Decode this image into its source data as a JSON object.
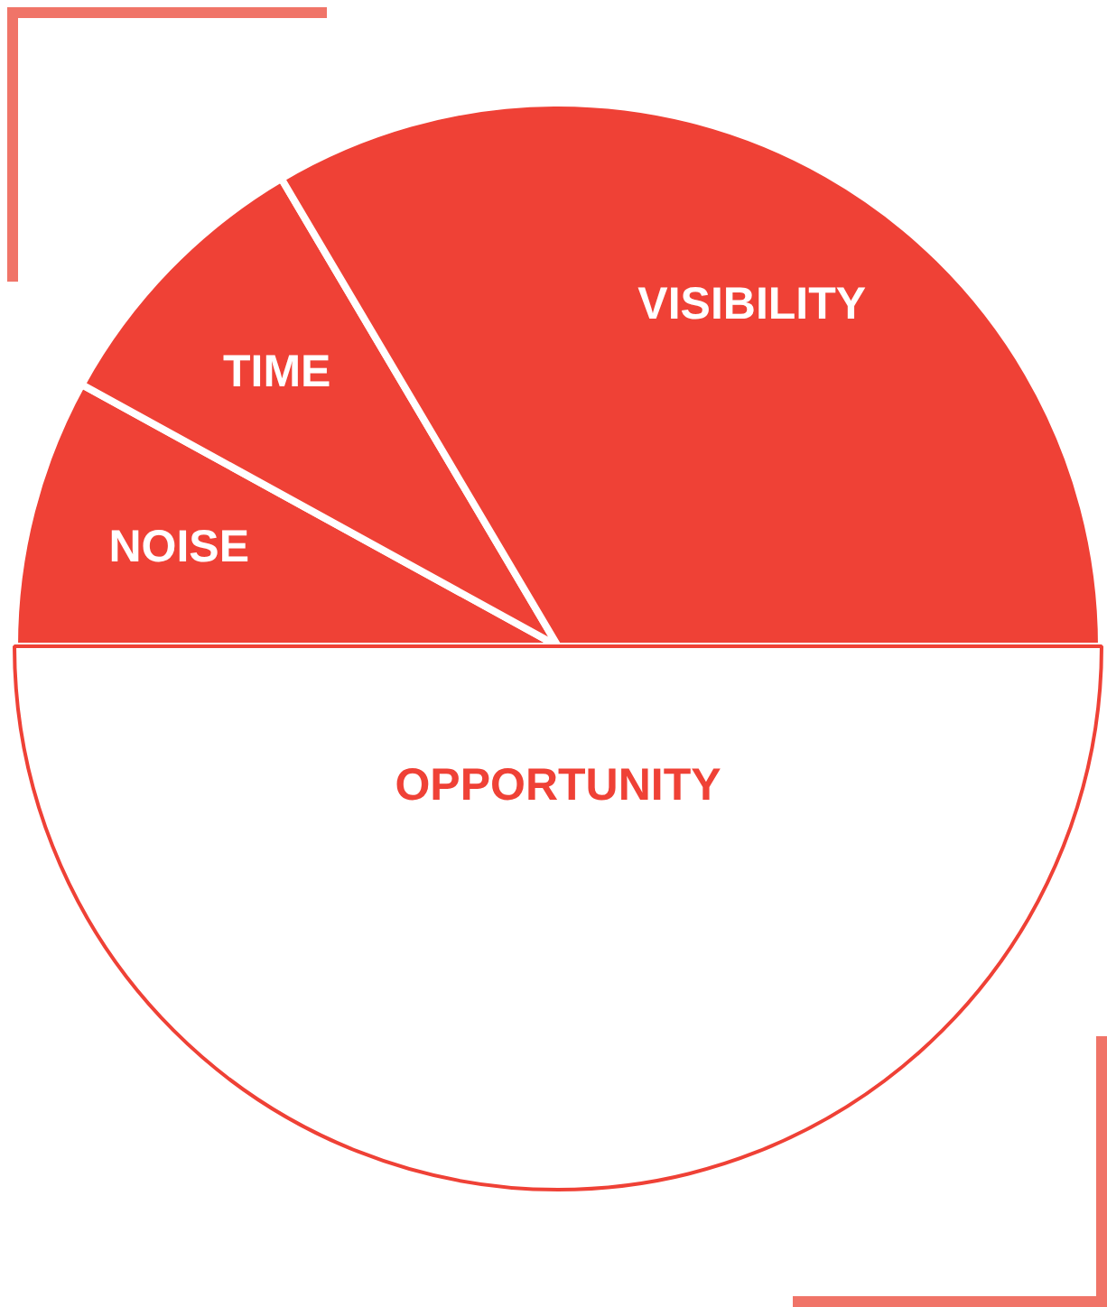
{
  "chart_data": {
    "type": "pie",
    "categories": [
      "NOISE",
      "TIME",
      "VISIBILITY",
      "OPPORTUNITY"
    ],
    "values": [
      8,
      8.5,
      33.5,
      50
    ],
    "colors": [
      "#ef4136",
      "#ef4136",
      "#ef4136",
      "#ffffff"
    ]
  }
}
